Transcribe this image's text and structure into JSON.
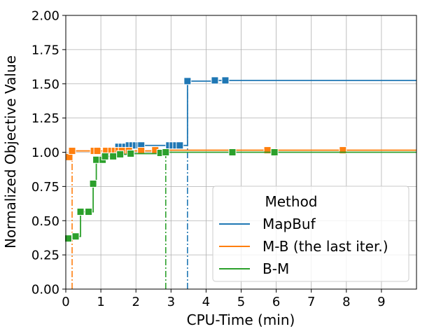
{
  "chart_data": {
    "type": "line",
    "title": "",
    "xlabel": "CPU-Time (min)",
    "ylabel": "Normalized Objective Value",
    "xlim": [
      0,
      10
    ],
    "ylim": [
      0,
      2
    ],
    "xticks": [
      0,
      1,
      2,
      3,
      4,
      5,
      6,
      7,
      8,
      9
    ],
    "xtick_labels": [
      "0",
      "1",
      "2",
      "3",
      "4",
      "5",
      "6",
      "7",
      "8",
      "9"
    ],
    "yticks": [
      0,
      0.25,
      0.5,
      0.75,
      1.0,
      1.25,
      1.5,
      1.75,
      2.0
    ],
    "ytick_labels": [
      "0.00",
      "0.25",
      "0.50",
      "0.75",
      "1.00",
      "1.25",
      "1.50",
      "1.75",
      "2.00"
    ],
    "grid": true,
    "legend": {
      "title": "Method",
      "position": "lower-right"
    },
    "series": [
      {
        "name": "MapBuf",
        "color": "#1f77b4",
        "step": true,
        "extend_to_x": 10,
        "points": [
          [
            1.5,
            1.04
          ],
          [
            1.6,
            1.04
          ],
          [
            1.7,
            1.04
          ],
          [
            1.8,
            1.05
          ],
          [
            1.9,
            1.05
          ],
          [
            2.0,
            1.05
          ],
          [
            2.1,
            1.05
          ],
          [
            2.15,
            1.05
          ],
          [
            2.95,
            1.05
          ],
          [
            3.05,
            1.05
          ],
          [
            3.15,
            1.05
          ],
          [
            3.25,
            1.05
          ],
          [
            3.47,
            1.52
          ],
          [
            4.25,
            1.525
          ],
          [
            4.55,
            1.525
          ]
        ],
        "vline": 3.47
      },
      {
        "name": "M-B (the last iter.)",
        "color": "#ff7f0e",
        "step": true,
        "extend_to_x": 10,
        "points": [
          [
            0.1,
            0.965
          ],
          [
            0.18,
            1.01
          ],
          [
            0.8,
            1.01
          ],
          [
            0.9,
            1.01
          ],
          [
            1.15,
            1.01
          ],
          [
            1.3,
            1.01
          ],
          [
            1.4,
            1.01
          ],
          [
            1.5,
            1.01
          ],
          [
            1.6,
            1.01
          ],
          [
            1.8,
            1.01
          ],
          [
            2.15,
            1.01
          ],
          [
            2.55,
            1.015
          ],
          [
            5.75,
            1.015
          ],
          [
            7.9,
            1.015
          ]
        ],
        "vline": 0.18
      },
      {
        "name": "B-M",
        "color": "#2ca02c",
        "step": true,
        "extend_to_x": 10,
        "points": [
          [
            0.07,
            0.37
          ],
          [
            0.28,
            0.385
          ],
          [
            0.42,
            0.565
          ],
          [
            0.65,
            0.565
          ],
          [
            0.78,
            0.77
          ],
          [
            0.87,
            0.945
          ],
          [
            1.05,
            0.945
          ],
          [
            1.12,
            0.97
          ],
          [
            1.35,
            0.97
          ],
          [
            1.55,
            0.985
          ],
          [
            1.85,
            0.99
          ],
          [
            2.7,
            0.995
          ],
          [
            2.85,
            1.0
          ],
          [
            4.75,
            1.0
          ],
          [
            5.95,
            1.0
          ]
        ],
        "vline": 2.85
      }
    ]
  }
}
